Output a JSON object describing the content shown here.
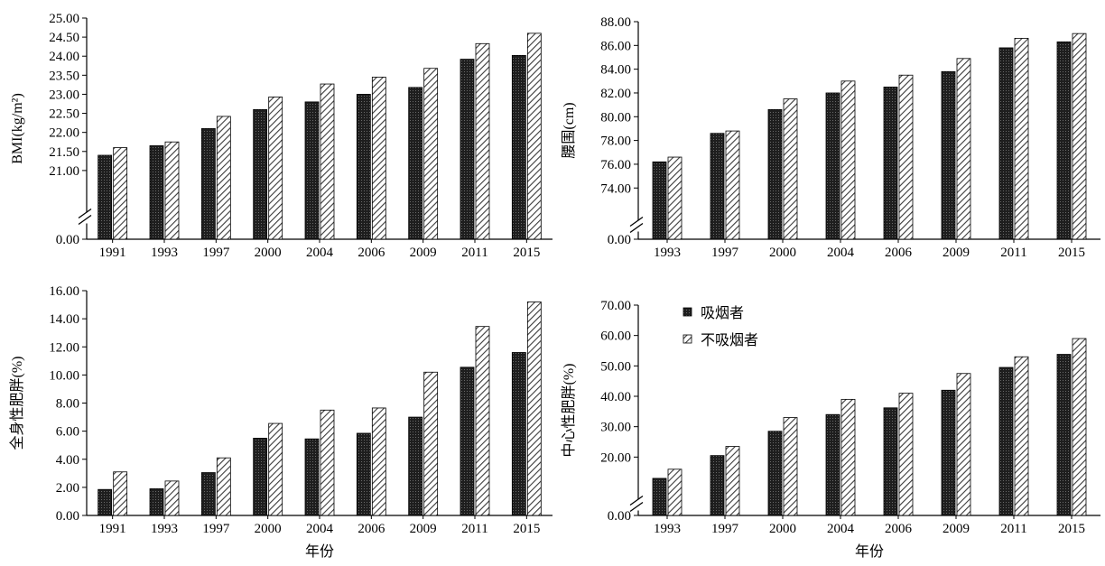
{
  "colors": {
    "smoker": "#1f1f1f",
    "nonsmoker_stroke": "#444444",
    "axis": "#000000"
  },
  "legend": {
    "items": [
      {
        "series": "smoker",
        "label": "吸烟者",
        "pattern": "dark-dotted"
      },
      {
        "series": "nonsmoker",
        "label": "不吸烟者",
        "pattern": "diagonal-hatch"
      }
    ]
  },
  "chart_data": [
    {
      "type": "bar",
      "title": "",
      "xlabel": "",
      "ylabel": "BMI(kg/m²)",
      "axis_break": true,
      "ylim": [
        0,
        25
      ],
      "ybreak_range": [
        20.5,
        25
      ],
      "yticks": [
        "25.00",
        "24.50",
        "24.00",
        "23.50",
        "23.00",
        "22.50",
        "22.00",
        "21.50",
        "21.00",
        "0.00"
      ],
      "categories": [
        "1991",
        "1993",
        "1997",
        "2000",
        "2004",
        "2006",
        "2009",
        "2011",
        "2015"
      ],
      "series": [
        {
          "name": "吸烟者",
          "values": [
            21.4,
            21.65,
            22.1,
            22.6,
            22.8,
            23.0,
            23.18,
            23.92,
            24.02
          ]
        },
        {
          "name": "不吸烟者",
          "values": [
            21.6,
            21.75,
            22.42,
            22.93,
            23.27,
            23.45,
            23.68,
            24.33,
            24.6
          ]
        }
      ]
    },
    {
      "type": "bar",
      "title": "",
      "xlabel": "",
      "ylabel": "腰围(cm)",
      "axis_break": true,
      "ylim": [
        0,
        88
      ],
      "ybreak_range": [
        72.5,
        88
      ],
      "yticks": [
        "88.00",
        "86.00",
        "84.00",
        "82.00",
        "80.00",
        "78.00",
        "76.00",
        "74.00",
        "0.00"
      ],
      "categories": [
        "1993",
        "1997",
        "2000",
        "2004",
        "2006",
        "2009",
        "2011",
        "2015"
      ],
      "series": [
        {
          "name": "吸烟者",
          "values": [
            76.2,
            78.6,
            80.6,
            82.0,
            82.5,
            83.8,
            85.8,
            86.3
          ]
        },
        {
          "name": "不吸烟者",
          "values": [
            76.6,
            78.8,
            81.5,
            83.0,
            83.5,
            84.9,
            86.6,
            87.0
          ]
        }
      ]
    },
    {
      "type": "bar",
      "title": "",
      "xlabel": "年份",
      "ylabel": "全身性肥胖(%)",
      "axis_break": false,
      "ylim": [
        0,
        16
      ],
      "yticks": [
        "16.00",
        "14.00",
        "12.00",
        "10.00",
        "8.00",
        "6.00",
        "4.00",
        "2.00",
        "0.00"
      ],
      "categories": [
        "1991",
        "1993",
        "1997",
        "2000",
        "2004",
        "2006",
        "2009",
        "2011",
        "2015"
      ],
      "series": [
        {
          "name": "吸烟者",
          "values": [
            1.85,
            1.9,
            3.05,
            5.5,
            5.45,
            5.85,
            7.0,
            10.55,
            11.6
          ]
        },
        {
          "name": "不吸烟者",
          "values": [
            3.1,
            2.45,
            4.1,
            6.55,
            7.5,
            7.65,
            10.2,
            13.45,
            15.2
          ]
        }
      ]
    },
    {
      "type": "bar",
      "title": "",
      "xlabel": "年份",
      "ylabel": "中心性肥胖(%)",
      "axis_break": true,
      "ylim": [
        0,
        70
      ],
      "ybreak_range": [
        10,
        70
      ],
      "yticks": [
        "70.00",
        "60.00",
        "50.00",
        "40.00",
        "30.00",
        "20.00",
        "0.00"
      ],
      "categories": [
        "1993",
        "1997",
        "2000",
        "2004",
        "2006",
        "2009",
        "2011",
        "2015"
      ],
      "series": [
        {
          "name": "吸烟者",
          "values": [
            13.0,
            20.5,
            28.5,
            34.0,
            36.2,
            42.0,
            49.5,
            53.8
          ]
        },
        {
          "name": "不吸烟者",
          "values": [
            16.0,
            23.5,
            33.0,
            39.0,
            41.0,
            47.5,
            53.0,
            59.0
          ]
        }
      ]
    }
  ]
}
